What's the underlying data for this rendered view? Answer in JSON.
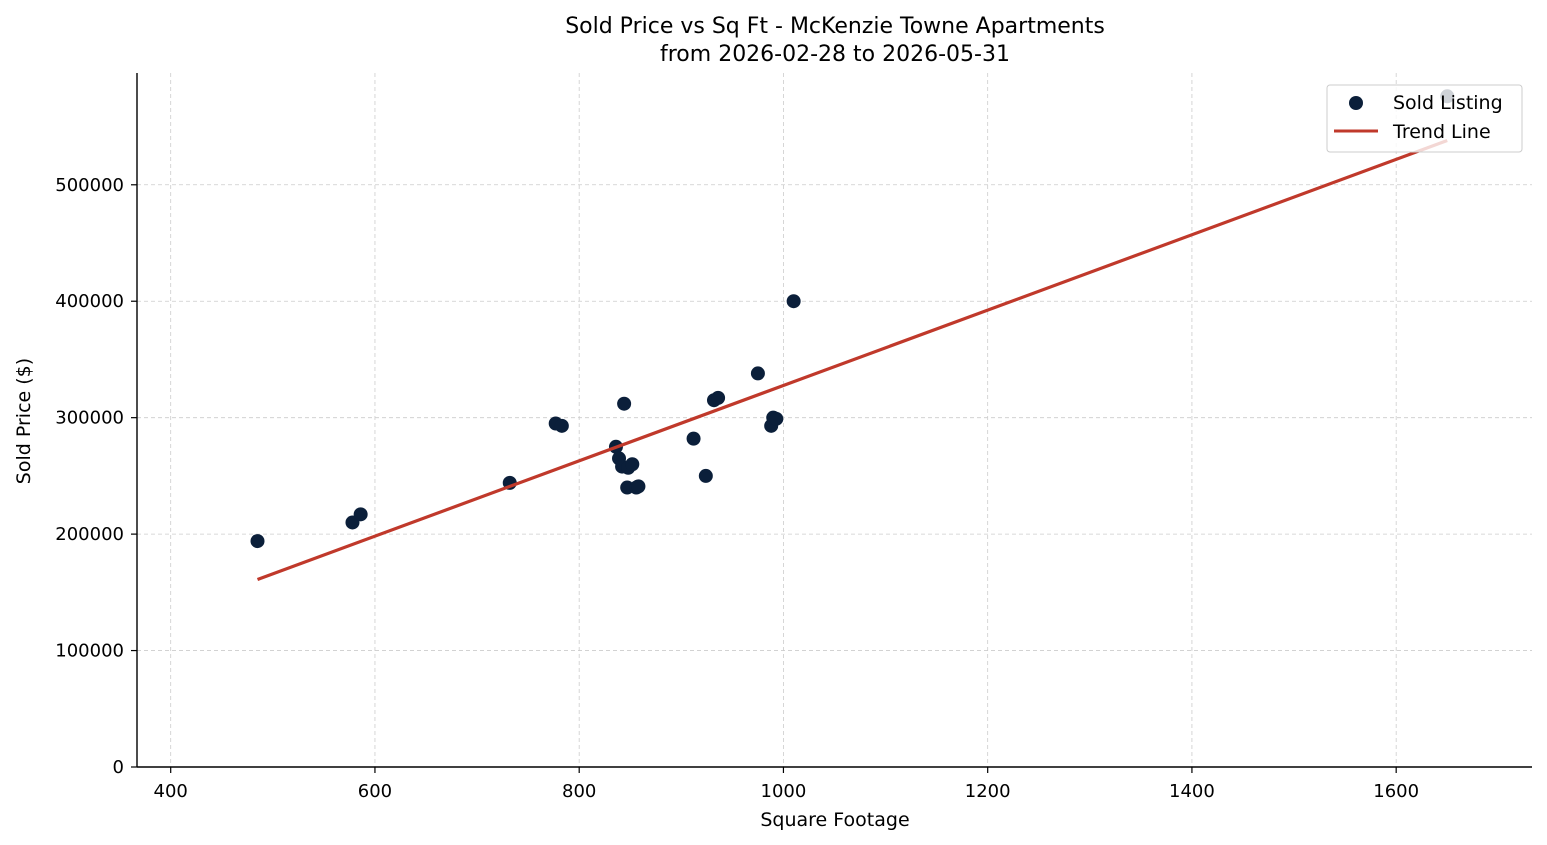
{
  "chart_data": {
    "type": "scatter",
    "title": "Sold Price vs Sq Ft - McKenzie Towne Apartments",
    "subtitle": "from 2026-02-28 to 2026-05-31",
    "xlabel": "Square Footage",
    "ylabel": "Sold Price ($)",
    "xlim": [
      367,
      1733
    ],
    "ylim": [
      0,
      596000
    ],
    "xticks": [
      400,
      600,
      800,
      1000,
      1200,
      1400,
      1600
    ],
    "xtick_labels": [
      "400",
      "600",
      "800",
      "1000",
      "1200",
      "1400",
      "1600"
    ],
    "yticks": [
      0,
      100000,
      200000,
      300000,
      400000,
      500000
    ],
    "ytick_labels": [
      "0",
      "100000",
      "200000",
      "300000",
      "400000",
      "500000"
    ],
    "grid": true,
    "legend_position": "top-right",
    "colors": {
      "points": "#0b1f3a",
      "trend": "#c0392b"
    },
    "series": [
      {
        "name": "Sold Listing",
        "kind": "scatter",
        "points": [
          {
            "x": 485,
            "y": 194000
          },
          {
            "x": 578,
            "y": 210000
          },
          {
            "x": 586,
            "y": 217000
          },
          {
            "x": 732,
            "y": 244000
          },
          {
            "x": 777,
            "y": 295000
          },
          {
            "x": 783,
            "y": 293000
          },
          {
            "x": 836,
            "y": 275000
          },
          {
            "x": 839,
            "y": 265000
          },
          {
            "x": 842,
            "y": 258000
          },
          {
            "x": 844,
            "y": 312000
          },
          {
            "x": 847,
            "y": 240000
          },
          {
            "x": 848,
            "y": 257000
          },
          {
            "x": 852,
            "y": 260000
          },
          {
            "x": 856,
            "y": 240000
          },
          {
            "x": 858,
            "y": 241000
          },
          {
            "x": 912,
            "y": 282000
          },
          {
            "x": 924,
            "y": 250000
          },
          {
            "x": 932,
            "y": 315000
          },
          {
            "x": 936,
            "y": 317000
          },
          {
            "x": 975,
            "y": 338000
          },
          {
            "x": 988,
            "y": 293000
          },
          {
            "x": 990,
            "y": 300000
          },
          {
            "x": 993,
            "y": 299000
          },
          {
            "x": 1010,
            "y": 400000
          },
          {
            "x": 1650,
            "y": 576000
          }
        ]
      },
      {
        "name": "Trend Line",
        "kind": "line",
        "points": [
          {
            "x": 485,
            "y": 161000
          },
          {
            "x": 1650,
            "y": 538000
          }
        ]
      }
    ]
  }
}
